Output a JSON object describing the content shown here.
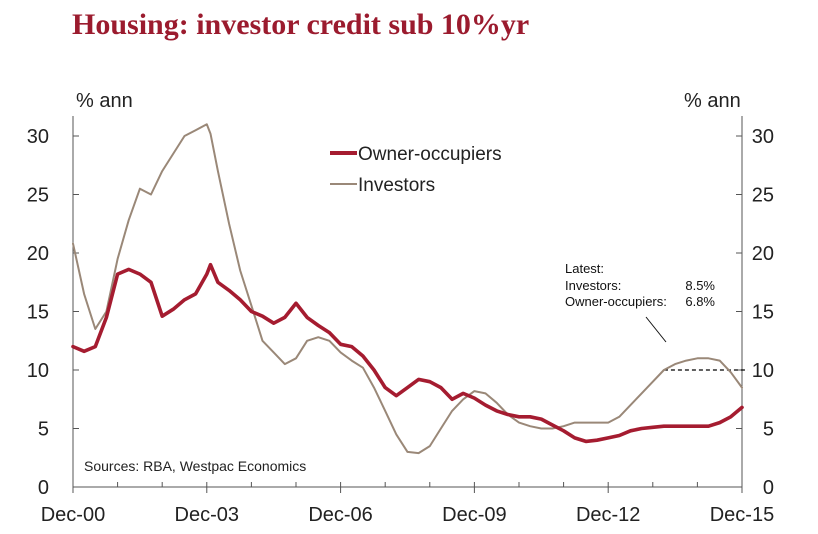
{
  "title": "Housing: investor credit sub 10%yr",
  "chart_data": {
    "type": "line",
    "title": "Housing: investor credit sub 10%yr",
    "left_unit": "% ann",
    "right_unit": "% ann",
    "ylim": [
      0,
      30
    ],
    "yticks": [
      "0",
      "5",
      "10",
      "15",
      "20",
      "25",
      "30"
    ],
    "xlim": [
      2000.917,
      2015.917
    ],
    "xticks": [
      "Dec-00",
      "Dec-03",
      "Dec-06",
      "Dec-09",
      "Dec-12",
      "Dec-15"
    ],
    "grid": false,
    "legend_position": "top-center",
    "series": [
      {
        "name": "Owner-occupiers",
        "color": "#a51c30",
        "x": [
          "2000-12",
          "2001-03",
          "2001-06",
          "2001-09",
          "2001-12",
          "2002-03",
          "2002-06",
          "2002-09",
          "2002-12",
          "2003-03",
          "2003-06",
          "2003-09",
          "2003-12",
          "2004-01",
          "2004-03",
          "2004-06",
          "2004-09",
          "2004-12",
          "2005-03",
          "2005-06",
          "2005-09",
          "2005-12",
          "2006-03",
          "2006-06",
          "2006-09",
          "2006-12",
          "2007-03",
          "2007-06",
          "2007-09",
          "2007-12",
          "2008-03",
          "2008-06",
          "2008-09",
          "2008-12",
          "2009-03",
          "2009-06",
          "2009-09",
          "2009-12",
          "2010-03",
          "2010-06",
          "2010-09",
          "2010-12",
          "2011-03",
          "2011-06",
          "2011-09",
          "2011-12",
          "2012-03",
          "2012-06",
          "2012-09",
          "2012-12",
          "2013-03",
          "2013-06",
          "2013-09",
          "2013-12",
          "2014-03",
          "2014-06",
          "2014-09",
          "2014-12",
          "2015-03",
          "2015-06",
          "2015-09",
          "2015-12"
        ],
        "values": [
          12.0,
          11.6,
          12.0,
          14.5,
          18.2,
          18.6,
          18.2,
          17.5,
          14.6,
          15.2,
          16.0,
          16.5,
          18.2,
          19.0,
          17.5,
          16.8,
          16.0,
          15.0,
          14.6,
          14.0,
          14.5,
          15.7,
          14.5,
          13.8,
          13.2,
          12.2,
          12.0,
          11.2,
          10.0,
          8.5,
          7.8,
          8.5,
          9.2,
          9.0,
          8.5,
          7.5,
          8.0,
          7.6,
          7.0,
          6.5,
          6.2,
          6.0,
          6.0,
          5.8,
          5.3,
          4.8,
          4.2,
          3.9,
          4.0,
          4.2,
          4.4,
          4.8,
          5.0,
          5.1,
          5.2,
          5.2,
          5.2,
          5.2,
          5.2,
          5.5,
          6.0,
          6.8
        ]
      },
      {
        "name": "Investors",
        "color": "#9a8878",
        "x": [
          "2000-12",
          "2001-03",
          "2001-06",
          "2001-09",
          "2001-12",
          "2002-03",
          "2002-06",
          "2002-09",
          "2002-12",
          "2003-03",
          "2003-06",
          "2003-09",
          "2003-12",
          "2004-01",
          "2004-03",
          "2004-06",
          "2004-09",
          "2004-12",
          "2005-03",
          "2005-06",
          "2005-09",
          "2005-12",
          "2006-03",
          "2006-06",
          "2006-09",
          "2006-12",
          "2007-03",
          "2007-06",
          "2007-09",
          "2007-12",
          "2008-03",
          "2008-06",
          "2008-09",
          "2008-12",
          "2009-03",
          "2009-06",
          "2009-09",
          "2009-12",
          "2010-03",
          "2010-06",
          "2010-09",
          "2010-12",
          "2011-03",
          "2011-06",
          "2011-09",
          "2011-12",
          "2012-03",
          "2012-06",
          "2012-09",
          "2012-12",
          "2013-03",
          "2013-06",
          "2013-09",
          "2013-12",
          "2014-03",
          "2014-06",
          "2014-09",
          "2014-12",
          "2015-03",
          "2015-06",
          "2015-09",
          "2015-12"
        ],
        "values": [
          20.8,
          16.5,
          13.5,
          15.0,
          19.5,
          22.8,
          25.5,
          25.0,
          27.0,
          28.5,
          30.0,
          30.5,
          31.0,
          30.2,
          27.0,
          22.5,
          18.5,
          15.5,
          12.5,
          11.5,
          10.5,
          11.0,
          12.5,
          12.8,
          12.5,
          11.5,
          10.8,
          10.2,
          8.5,
          6.5,
          4.5,
          3.0,
          2.9,
          3.5,
          5.0,
          6.5,
          7.5,
          8.2,
          8.0,
          7.2,
          6.2,
          5.5,
          5.2,
          5.0,
          5.0,
          5.2,
          5.5,
          5.5,
          5.5,
          5.5,
          6.0,
          7.0,
          8.0,
          9.0,
          10.0,
          10.5,
          10.8,
          11.0,
          11.0,
          10.8,
          9.8,
          8.5
        ]
      }
    ],
    "annotation": {
      "label": "Latest:",
      "lines": [
        {
          "name": "Investors:",
          "value": "8.5%"
        },
        {
          "name": "Owner-occupiers:",
          "value": "6.8%"
        }
      ]
    },
    "reference_line": {
      "y": 10,
      "from": "2014-03",
      "to": "2015-12",
      "style": "dashed"
    },
    "source": "Sources: RBA, Westpac Economics"
  }
}
